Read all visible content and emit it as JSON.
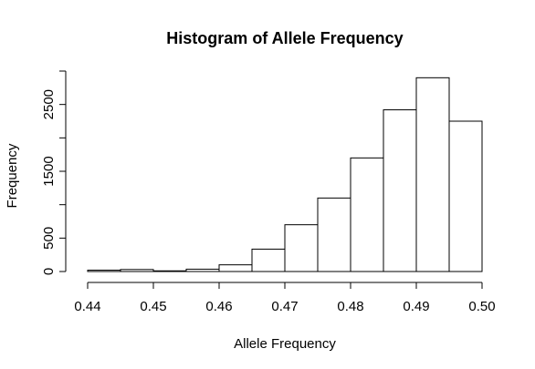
{
  "chart_data": {
    "type": "bar",
    "title": "Histogram of Allele Frequency",
    "xlabel": "Allele Frequency",
    "ylabel": "Frequency",
    "xlim": [
      0.44,
      0.5
    ],
    "ylim": [
      0,
      3000
    ],
    "x_ticks": [
      0.44,
      0.45,
      0.46,
      0.47,
      0.48,
      0.49,
      0.5
    ],
    "x_tick_labels": [
      "0.44",
      "0.45",
      "0.46",
      "0.47",
      "0.48",
      "0.49",
      "0.50"
    ],
    "y_ticks": [
      0,
      500,
      1000,
      1500,
      2000,
      2500,
      3000
    ],
    "y_tick_labels": [
      "0",
      "500",
      "",
      "1500",
      "",
      "2500",
      ""
    ],
    "bins": [
      {
        "start": 0.44,
        "end": 0.445,
        "value": 20
      },
      {
        "start": 0.445,
        "end": 0.45,
        "value": 30
      },
      {
        "start": 0.45,
        "end": 0.455,
        "value": 10
      },
      {
        "start": 0.455,
        "end": 0.46,
        "value": 35
      },
      {
        "start": 0.46,
        "end": 0.465,
        "value": 100
      },
      {
        "start": 0.465,
        "end": 0.47,
        "value": 335
      },
      {
        "start": 0.47,
        "end": 0.475,
        "value": 700
      },
      {
        "start": 0.475,
        "end": 0.48,
        "value": 1100
      },
      {
        "start": 0.48,
        "end": 0.485,
        "value": 1700
      },
      {
        "start": 0.485,
        "end": 0.49,
        "value": 2420
      },
      {
        "start": 0.49,
        "end": 0.495,
        "value": 2900
      },
      {
        "start": 0.495,
        "end": 0.5,
        "value": 2250
      }
    ],
    "grid": false,
    "legend": "none",
    "bar_fill": "#ffffff",
    "bar_stroke": "#000000"
  }
}
